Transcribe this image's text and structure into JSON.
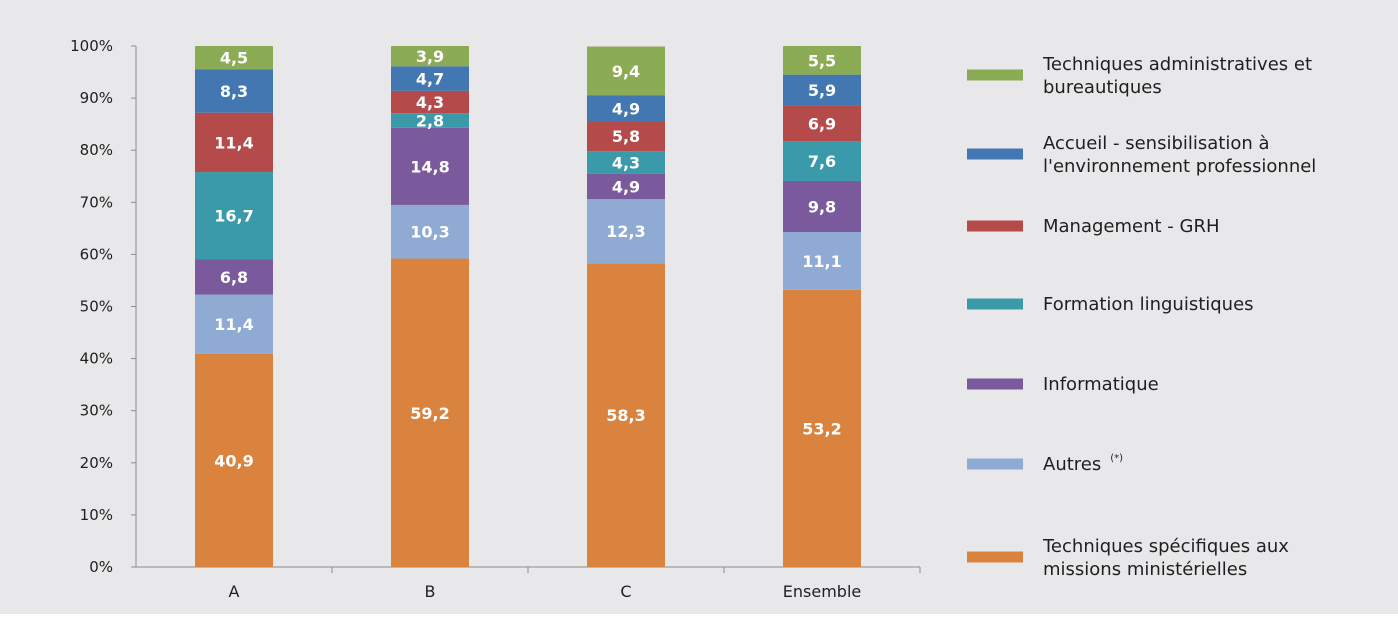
{
  "chart_data": {
    "type": "bar",
    "stacked": true,
    "categories": [
      "A",
      "B",
      "C",
      "Ensemble"
    ],
    "series": [
      {
        "name": "Techniques spécifiques aux missions ministérielles",
        "color": "#d9833f",
        "values": [
          40.9,
          59.2,
          58.3,
          53.2
        ]
      },
      {
        "name": "Autres",
        "legend_sup": "(*)",
        "color": "#8faad3",
        "values": [
          11.4,
          10.3,
          12.3,
          11.1
        ]
      },
      {
        "name": "Informatique",
        "color": "#7a5a9c",
        "values": [
          6.8,
          14.8,
          4.9,
          9.8
        ]
      },
      {
        "name": "Formation linguistiques",
        "color": "#3b9aa9",
        "values": [
          16.7,
          2.8,
          4.3,
          7.6
        ]
      },
      {
        "name": "Management - GRH",
        "color": "#b54a4a",
        "values": [
          11.4,
          4.3,
          5.8,
          6.9
        ]
      },
      {
        "name": "Accueil - sensibilisation à l'environnement professionnel",
        "color": "#4377b1",
        "values": [
          8.3,
          4.7,
          4.9,
          5.9
        ]
      },
      {
        "name": "Techniques administratives et bureautiques",
        "color": "#8bab55",
        "values": [
          4.5,
          3.9,
          9.4,
          5.5
        ]
      }
    ],
    "data_labels": [
      [
        "40,9",
        "59,2",
        "58,3",
        "53,2"
      ],
      [
        "11,4",
        "10,3",
        "12,3",
        "11,1"
      ],
      [
        "6,8",
        "14,8",
        "4,9",
        "9,8"
      ],
      [
        "16,7",
        "2,8",
        "4,3",
        "7,6"
      ],
      [
        "11,4",
        "4,3",
        "5,8",
        "6,9"
      ],
      [
        "8,3",
        "4,7",
        "4,9",
        "5,9"
      ],
      [
        "4,5",
        "3,9",
        "9,4",
        "5,5"
      ]
    ],
    "y_ticks": [
      "0%",
      "10%",
      "20%",
      "30%",
      "40%",
      "50%",
      "60%",
      "70%",
      "80%",
      "90%",
      "100%"
    ],
    "ylim": [
      0,
      100
    ],
    "legend": {
      "position": "right",
      "entries_top_to_bottom": [
        {
          "series_index": 6,
          "lines": [
            "Techniques administratives et",
            "bureautiques"
          ]
        },
        {
          "series_index": 5,
          "lines": [
            "Accueil - sensibilisation à",
            "l'environnement professionnel"
          ]
        },
        {
          "series_index": 4,
          "lines": [
            "Management - GRH"
          ]
        },
        {
          "series_index": 3,
          "lines": [
            "Formation linguistiques"
          ]
        },
        {
          "series_index": 2,
          "lines": [
            "Informatique"
          ]
        },
        {
          "series_index": 1,
          "lines": [
            "Autres"
          ],
          "sup": "(*)"
        },
        {
          "series_index": 0,
          "lines": [
            "Techniques spécifiques aux",
            "missions ministérielles"
          ]
        }
      ]
    },
    "background_color": "#e8e8ea",
    "grid": false
  }
}
